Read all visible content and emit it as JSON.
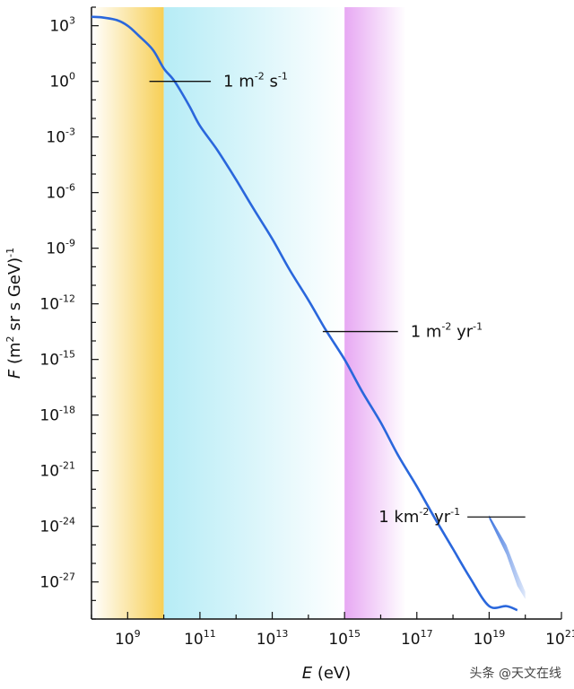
{
  "chart_data": {
    "type": "line",
    "x_scale": "log",
    "y_scale": "log",
    "xlabel": {
      "var": "E",
      "unit": " (eV)"
    },
    "ylabel": {
      "var": "F",
      "unit": " (m",
      "unit_exp": "2",
      "unit_tail": " sr s GeV)",
      "tail_exp": "-1"
    },
    "xlim": [
      100000000.0,
      1e+21
    ],
    "ylim": [
      1e-29,
      10000.0
    ],
    "x_ticks": [
      {
        "base": "10",
        "exp": "9",
        "value": 1000000000.0
      },
      {
        "base": "10",
        "exp": "11",
        "value": 100000000000.0
      },
      {
        "base": "10",
        "exp": "13",
        "value": 10000000000000.0
      },
      {
        "base": "10",
        "exp": "15",
        "value": 1000000000000000.0
      },
      {
        "base": "10",
        "exp": "17",
        "value": 1e+17
      },
      {
        "base": "10",
        "exp": "19",
        "value": 1e+19
      },
      {
        "base": "10",
        "exp": "21",
        "value": 1e+21
      }
    ],
    "y_ticks": [
      {
        "base": "10",
        "exp": "3",
        "value": 1000.0
      },
      {
        "base": "10",
        "exp": "0",
        "value": 1.0
      },
      {
        "base": "10",
        "exp": "-3",
        "value": 0.001
      },
      {
        "base": "10",
        "exp": "-6",
        "value": 1e-06
      },
      {
        "base": "10",
        "exp": "-9",
        "value": 1e-09
      },
      {
        "base": "10",
        "exp": "-12",
        "value": 1e-12
      },
      {
        "base": "10",
        "exp": "-15",
        "value": 1e-15
      },
      {
        "base": "10",
        "exp": "-18",
        "value": 1e-18
      },
      {
        "base": "10",
        "exp": "-21",
        "value": 1e-21
      },
      {
        "base": "10",
        "exp": "-24",
        "value": 1e-24
      },
      {
        "base": "10",
        "exp": "-27",
        "value": 1e-27
      }
    ],
    "series": [
      {
        "color": "#2a67dc",
        "x": [
          100000000.0,
          200000000.0,
          500000000.0,
          1000000000.0,
          2000000000.0,
          5000000000.0,
          10000000000.0,
          20000000000.0,
          50000000000.0,
          100000000000.0,
          300000000000.0,
          1000000000000.0,
          3000000000000.0,
          10000000000000.0,
          30000000000000.0,
          100000000000000.0,
          300000000000000.0,
          1000000000000000.0,
          3000000000000000.0,
          1e+16,
          3e+16,
          1e+17,
          3e+17,
          1e+18,
          3e+18,
          1e+19,
          3e+19,
          6e+19
        ],
        "y": [
          3000.0,
          2800.0,
          2000.0,
          1000.0,
          300.0,
          50.0,
          5,
          1,
          0.05,
          0.004,
          0.0002,
          5e-06,
          1.4e-07,
          3.2e-09,
          7e-11,
          1.6e-12,
          4e-14,
          1e-15,
          2e-17,
          4e-19,
          7e-21,
          1.4e-22,
          3.2e-24,
          6e-26,
          1.6e-27,
          5e-29,
          5e-29,
          3e-29
        ]
      }
    ],
    "uncertainty_band": {
      "color": "#2a67dc",
      "x": [
        1e+19,
        3e+19,
        6e+19,
        1e+20
      ],
      "y_upper": [
        4e-24,
        1e-25,
        3e-27,
        3e-28
      ],
      "y_lower": [
        2.5e-24,
        3e-26,
        6e-28,
        1.2e-28
      ]
    },
    "bands": [
      {
        "x_from": 100000000.0,
        "x_to": 10000000000.0,
        "color": "#f7cf55"
      },
      {
        "x_from": 10000000000.0,
        "x_to": 1000000000000000.0,
        "color": "#b6ecf6"
      },
      {
        "x_from": 1000000000000000.0,
        "x_to": 5e+16,
        "color": "#e7a8f3"
      }
    ],
    "annotations": [
      {
        "text": "1 m",
        "exp": "-2",
        "mid": " s",
        "mid_exp": "-1",
        "tail": "",
        "tail_exp": "",
        "x_from": 4000000000.0,
        "x_to": 200000000000.0,
        "y": 1
      },
      {
        "text": "1 m",
        "exp": "-2",
        "mid": " yr",
        "mid_exp": "-1",
        "tail": "",
        "tail_exp": "",
        "x_from": 250000000000000.0,
        "x_to": 3e+16,
        "y": 3.2e-14
      },
      {
        "text": "1 km",
        "exp": "-2",
        "mid": " yr",
        "mid_exp": "-1",
        "tail": "",
        "tail_exp": "",
        "x_from": 2.5e+18,
        "x_to": 1e+20,
        "y": 3.2e-24
      }
    ]
  },
  "watermark": "头条 @天文在线"
}
